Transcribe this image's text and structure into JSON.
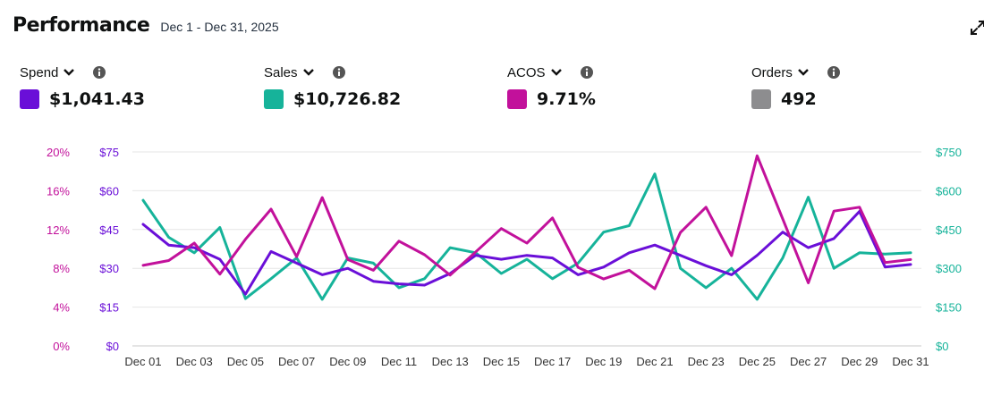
{
  "header": {
    "title": "Performance",
    "date_range": "Dec 1 - Dec 31, 2025"
  },
  "icons": {
    "expand": "expand-icon",
    "info": "info-icon",
    "dropdown": "chevron-down-icon"
  },
  "metrics": [
    {
      "label": "Spend",
      "value": "$1,041.43",
      "color": "#6a0fd8"
    },
    {
      "label": "Sales",
      "value": "$10,726.82",
      "color": "#16b39a"
    },
    {
      "label": "ACOS",
      "value": "9.71%",
      "color": "#c2119b"
    },
    {
      "label": "Orders",
      "value": "492",
      "color": "#8d8d8f"
    }
  ],
  "chart_data": {
    "type": "line",
    "x": [
      "Dec 01",
      "Dec 02",
      "Dec 03",
      "Dec 04",
      "Dec 05",
      "Dec 06",
      "Dec 07",
      "Dec 08",
      "Dec 09",
      "Dec 10",
      "Dec 11",
      "Dec 12",
      "Dec 13",
      "Dec 14",
      "Dec 15",
      "Dec 16",
      "Dec 17",
      "Dec 18",
      "Dec 19",
      "Dec 20",
      "Dec 21",
      "Dec 22",
      "Dec 23",
      "Dec 24",
      "Dec 25",
      "Dec 26",
      "Dec 27",
      "Dec 28",
      "Dec 29",
      "Dec 30",
      "Dec 31"
    ],
    "x_tick_labels": [
      "Dec 01",
      "Dec 03",
      "Dec 05",
      "Dec 07",
      "Dec 09",
      "Dec 11",
      "Dec 13",
      "Dec 15",
      "Dec 17",
      "Dec 19",
      "Dec 21",
      "Dec 23",
      "Dec 25",
      "Dec 27",
      "Dec 29",
      "Dec 31"
    ],
    "axes": {
      "acos": {
        "ticks": [
          "0%",
          "4%",
          "8%",
          "12%",
          "16%",
          "20%"
        ],
        "range": [
          0,
          20
        ],
        "color": "#c2119b"
      },
      "spend": {
        "ticks": [
          "$0",
          "$15",
          "$30",
          "$45",
          "$60",
          "$75"
        ],
        "range": [
          0,
          75
        ],
        "color": "#6a0fd8"
      },
      "sales": {
        "ticks": [
          "$0",
          "$150",
          "$300",
          "$450",
          "$600",
          "$750"
        ],
        "range": [
          0,
          750
        ],
        "color": "#16b39a"
      }
    },
    "grid": true,
    "series": [
      {
        "key": "sales",
        "axis": "sales",
        "color": "#16b39a",
        "values": [
          563,
          420,
          360,
          458,
          183,
          260,
          340,
          180,
          340,
          320,
          225,
          260,
          380,
          360,
          280,
          335,
          260,
          320,
          440,
          465,
          665,
          300,
          225,
          300,
          180,
          340,
          575,
          300,
          360,
          355,
          360
        ]
      },
      {
        "key": "spend",
        "axis": "spend",
        "color": "#6a0fd8",
        "values": [
          47,
          39,
          38,
          33.5,
          20,
          36.5,
          32,
          27.5,
          30,
          25,
          24,
          23.5,
          28,
          35,
          33.5,
          35,
          34,
          27.5,
          30.5,
          36,
          39,
          35,
          31,
          27.5,
          35,
          44,
          38,
          41.5,
          52,
          30.5,
          31.5
        ]
      },
      {
        "key": "acos",
        "axis": "acos",
        "color": "#c2119b",
        "values": [
          8.3,
          8.8,
          10.6,
          7.4,
          11,
          14.1,
          9.2,
          15.3,
          8.9,
          7.8,
          10.8,
          9.4,
          7.3,
          9.7,
          12.1,
          10.6,
          13.2,
          8.1,
          6.9,
          7.8,
          5.9,
          11.7,
          14.3,
          9.3,
          19.6,
          13.1,
          6.5,
          13.9,
          14.3,
          8.6,
          8.9
        ]
      }
    ]
  }
}
